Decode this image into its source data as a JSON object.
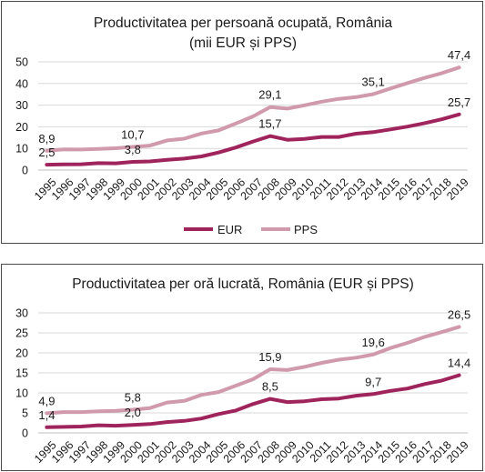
{
  "colors": {
    "eur": "#a0245c",
    "pps": "#d09aac",
    "grid": "#d9d9d9",
    "axis": "#bfbfbf"
  },
  "legend": {
    "eur": "EUR",
    "pps": "PPS"
  },
  "chart_data": [
    {
      "type": "line",
      "title": "Productivitatea per persoană ocupată, România",
      "subtitle": "(mii EUR și PPS)",
      "x": [
        "1995",
        "1996",
        "1997",
        "1998",
        "1999",
        "2000",
        "2001",
        "2002",
        "2003",
        "2004",
        "2005",
        "2006",
        "2007",
        "2008",
        "2009",
        "2010",
        "2011",
        "2012",
        "2013",
        "2014",
        "2015",
        "2016",
        "2017",
        "2018",
        "2019"
      ],
      "ylim": [
        0,
        50
      ],
      "yticks": [
        0,
        10,
        20,
        30,
        40,
        50
      ],
      "grid": true,
      "legend_position": "bottom",
      "series": [
        {
          "name": "EUR",
          "values": [
            2.5,
            2.6,
            2.7,
            3.2,
            3.1,
            3.8,
            4.0,
            4.7,
            5.3,
            6.3,
            8.1,
            10.4,
            13.2,
            15.7,
            14.0,
            14.4,
            15.3,
            15.3,
            16.8,
            17.5,
            18.8,
            20.1,
            21.7,
            23.5,
            25.7
          ]
        },
        {
          "name": "PPS",
          "values": [
            8.9,
            9.6,
            9.5,
            9.8,
            10.1,
            10.7,
            11.3,
            13.7,
            14.5,
            16.9,
            18.3,
            21.5,
            24.8,
            29.1,
            28.4,
            29.9,
            31.6,
            32.9,
            33.7,
            35.1,
            37.7,
            40.2,
            42.6,
            44.8,
            47.4
          ]
        }
      ],
      "data_labels": [
        {
          "series": 0,
          "index": 0,
          "text": "2,5",
          "pos": "above"
        },
        {
          "series": 0,
          "index": 5,
          "text": "3,8",
          "pos": "above"
        },
        {
          "series": 0,
          "index": 13,
          "text": "15,7",
          "pos": "above"
        },
        {
          "series": 0,
          "index": 24,
          "text": "25,7",
          "pos": "above"
        },
        {
          "series": 1,
          "index": 0,
          "text": "8,9",
          "pos": "above"
        },
        {
          "series": 1,
          "index": 5,
          "text": "10,7",
          "pos": "above"
        },
        {
          "series": 1,
          "index": 13,
          "text": "29,1",
          "pos": "above"
        },
        {
          "series": 1,
          "index": 19,
          "text": "35,1",
          "pos": "above"
        },
        {
          "series": 1,
          "index": 24,
          "text": "47,4",
          "pos": "above"
        }
      ]
    },
    {
      "type": "line",
      "title": "Productivitatea per oră lucrată, România (EUR și PPS)",
      "subtitle": "",
      "x": [
        "1995",
        "1996",
        "1997",
        "1998",
        "1999",
        "2000",
        "2001",
        "2002",
        "2003",
        "2004",
        "2005",
        "2006",
        "2007",
        "2008",
        "2009",
        "2010",
        "2011",
        "2012",
        "2013",
        "2014",
        "2015",
        "2016",
        "2017",
        "2018",
        "2019"
      ],
      "ylim": [
        0,
        30
      ],
      "yticks": [
        0,
        5,
        10,
        15,
        20,
        25,
        30
      ],
      "grid": true,
      "legend_position": "none",
      "series": [
        {
          "name": "EUR",
          "values": [
            1.4,
            1.5,
            1.6,
            1.9,
            1.8,
            2.0,
            2.2,
            2.7,
            3.0,
            3.6,
            4.7,
            5.6,
            7.2,
            8.5,
            7.7,
            7.9,
            8.4,
            8.6,
            9.3,
            9.7,
            10.5,
            11.1,
            12.2,
            13.1,
            14.4
          ]
        },
        {
          "name": "PPS",
          "values": [
            4.9,
            5.2,
            5.2,
            5.4,
            5.5,
            5.8,
            6.2,
            7.6,
            8.0,
            9.5,
            10.2,
            11.8,
            13.4,
            15.9,
            15.7,
            16.5,
            17.5,
            18.3,
            18.8,
            19.6,
            21.2,
            22.5,
            24.0,
            25.2,
            26.5
          ]
        }
      ],
      "data_labels": [
        {
          "series": 0,
          "index": 0,
          "text": "1,4",
          "pos": "above"
        },
        {
          "series": 0,
          "index": 5,
          "text": "2,0",
          "pos": "above"
        },
        {
          "series": 0,
          "index": 13,
          "text": "8,5",
          "pos": "above"
        },
        {
          "series": 0,
          "index": 19,
          "text": "9,7",
          "pos": "above"
        },
        {
          "series": 0,
          "index": 24,
          "text": "14,4",
          "pos": "above"
        },
        {
          "series": 1,
          "index": 0,
          "text": "4,9",
          "pos": "above"
        },
        {
          "series": 1,
          "index": 5,
          "text": "5,8",
          "pos": "above"
        },
        {
          "series": 1,
          "index": 13,
          "text": "15,9",
          "pos": "above"
        },
        {
          "series": 1,
          "index": 19,
          "text": "19,6",
          "pos": "above"
        },
        {
          "series": 1,
          "index": 24,
          "text": "26,5",
          "pos": "above"
        }
      ]
    }
  ]
}
